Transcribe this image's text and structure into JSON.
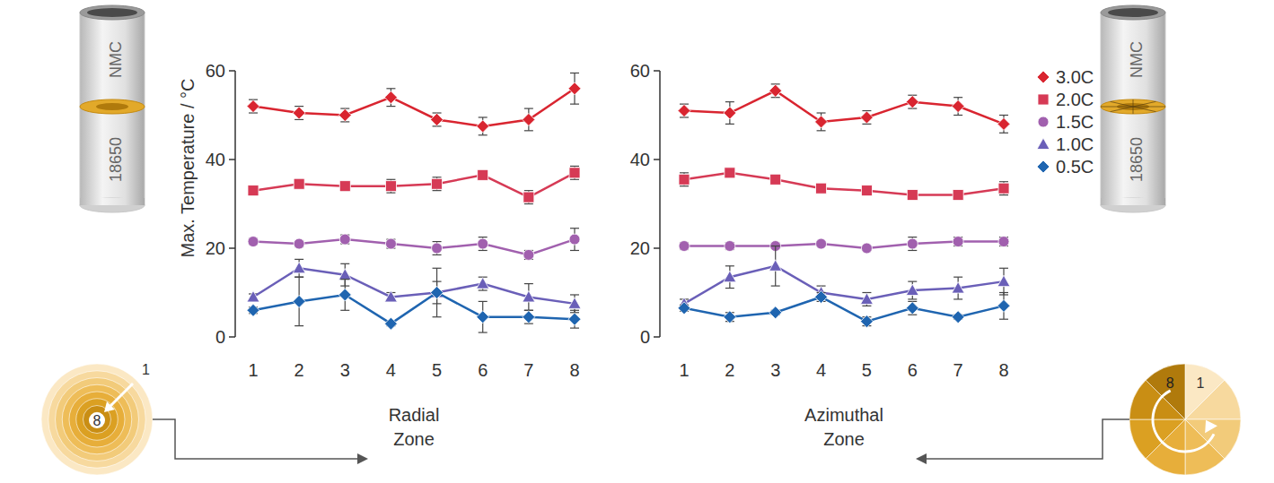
{
  "chart_data": [
    {
      "type": "line",
      "x_label": "Radial Zone",
      "y_label": "Max. Temperature / °C",
      "categories": [
        "1",
        "2",
        "3",
        "4",
        "5",
        "6",
        "7",
        "8"
      ],
      "ylim": [
        0,
        60
      ],
      "yticks": [
        0,
        20,
        40,
        60
      ],
      "series": [
        {
          "name": "3.0C",
          "color": "#d92530",
          "marker": "diamond",
          "values": [
            52,
            50.5,
            50,
            54,
            49,
            47.5,
            49,
            56
          ],
          "errors": [
            1.5,
            1.5,
            1.5,
            2,
            1.5,
            2,
            2.5,
            3.5
          ]
        },
        {
          "name": "2.0C",
          "color": "#d63a55",
          "marker": "square",
          "values": [
            33,
            34.5,
            34,
            34,
            34.5,
            36.5,
            31.5,
            37
          ],
          "errors": [
            1,
            1,
            1,
            1.5,
            1.5,
            1,
            1.5,
            1.5
          ]
        },
        {
          "name": "1.5C",
          "color": "#a160ae",
          "marker": "circle",
          "values": [
            21.5,
            21,
            22,
            21,
            20,
            21,
            18.5,
            22
          ],
          "errors": [
            0.7,
            0.7,
            1,
            1,
            1.5,
            1.5,
            1,
            2.5
          ]
        },
        {
          "name": "1.0C",
          "color": "#6a5fb8",
          "marker": "triangle",
          "values": [
            9,
            15.5,
            14,
            9,
            10,
            12,
            9,
            7.5
          ],
          "errors": [
            0.7,
            2,
            2.5,
            1,
            2.5,
            1.5,
            3,
            2
          ]
        },
        {
          "name": "0.5C",
          "color": "#1f65b0",
          "marker": "diamond",
          "values": [
            6,
            8,
            9.5,
            3,
            10,
            4.5,
            4.5,
            4
          ],
          "errors": [
            0.7,
            5.5,
            3.5,
            0.5,
            5.5,
            3.5,
            1.5,
            2
          ]
        }
      ]
    },
    {
      "type": "line",
      "x_label": "Azimuthal Zone",
      "legend": "right",
      "categories": [
        "1",
        "2",
        "3",
        "4",
        "5",
        "6",
        "7",
        "8"
      ],
      "ylim": [
        0,
        60
      ],
      "yticks": [
        0,
        20,
        40,
        60
      ],
      "series": [
        {
          "name": "3.0C",
          "color": "#d92530",
          "marker": "diamond",
          "values": [
            51,
            50.5,
            55.5,
            48.5,
            49.5,
            53,
            52,
            48
          ],
          "errors": [
            1.5,
            2.5,
            1.5,
            2,
            1.5,
            1.5,
            2,
            2
          ]
        },
        {
          "name": "2.0C",
          "color": "#d63a55",
          "marker": "square",
          "values": [
            35.5,
            37,
            35.5,
            33.5,
            33,
            32,
            32,
            33.5
          ],
          "errors": [
            1.5,
            0.8,
            1,
            0.5,
            0.5,
            0.5,
            1,
            1.5
          ]
        },
        {
          "name": "1.5C",
          "color": "#a160ae",
          "marker": "circle",
          "values": [
            20.5,
            20.5,
            20.5,
            21,
            20,
            21,
            21.5,
            21.5
          ],
          "errors": [
            0.8,
            0.8,
            0.5,
            0.5,
            0.5,
            1.5,
            1,
            1
          ]
        },
        {
          "name": "1.0C",
          "color": "#6a5fb8",
          "marker": "triangle",
          "values": [
            7.5,
            13.5,
            16,
            10,
            8.5,
            10.5,
            11,
            12.5
          ],
          "errors": [
            1,
            2.5,
            4.5,
            1.5,
            1.5,
            2,
            2.5,
            3
          ]
        },
        {
          "name": "0.5C",
          "color": "#1f65b0",
          "marker": "diamond",
          "values": [
            6.5,
            4.5,
            5.5,
            9,
            3.5,
            6.5,
            4.5,
            7
          ],
          "errors": [
            0.7,
            1,
            0.5,
            1,
            1,
            1.5,
            0.5,
            3
          ]
        }
      ]
    }
  ],
  "illustrations": {
    "radial": {
      "cell_top": "NMC",
      "cell_bottom": "18650",
      "zone_first": "1",
      "zone_last": "8"
    },
    "azimuthal": {
      "cell_top": "NMC",
      "cell_bottom": "18650",
      "zone_first": "1",
      "zone_last": "8"
    }
  }
}
